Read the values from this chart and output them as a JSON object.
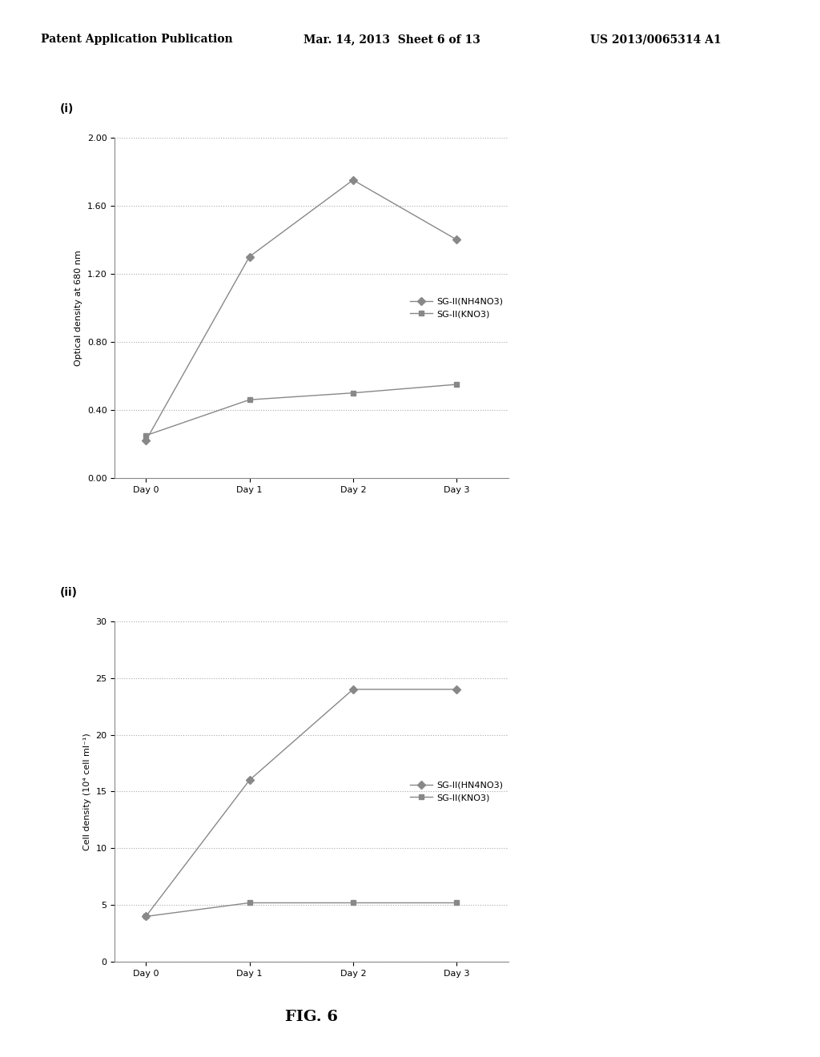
{
  "header_left": "Patent Application Publication",
  "header_mid": "Mar. 14, 2013  Sheet 6 of 13",
  "header_right": "US 2013/0065314 A1",
  "footer_label": "FIG. 6",
  "plot_i": {
    "label": "(i)",
    "x_labels": [
      "Day 0",
      "Day 1",
      "Day 2",
      "Day 3"
    ],
    "x_values": [
      0,
      1,
      2,
      3
    ],
    "series1_label": "SG-II(NH4NO3)",
    "series1_values": [
      0.22,
      1.3,
      1.75,
      1.4
    ],
    "series2_label": "SG-II(KNO3)",
    "series2_values": [
      0.25,
      0.46,
      0.5,
      0.55
    ],
    "ylabel": "Optical density at 680 nm",
    "ylim": [
      0.0,
      2.0
    ],
    "yticks": [
      0.0,
      0.4,
      0.8,
      1.2,
      1.6,
      2.0
    ],
    "marker1": "D",
    "marker2": "s"
  },
  "plot_ii": {
    "label": "(ii)",
    "x_labels": [
      "Day 0",
      "Day 1",
      "Day 2",
      "Day 3"
    ],
    "x_values": [
      0,
      1,
      2,
      3
    ],
    "series1_label": "SG-II(HN4NO3)",
    "series1_values": [
      4.0,
      16.0,
      24.0,
      24.0
    ],
    "series2_label": "SG-II(KNO3)",
    "series2_values": [
      4.0,
      5.2,
      5.2,
      5.2
    ],
    "ylabel": "Cell density (10⁴ cell ml⁻¹)",
    "ylim": [
      0,
      30
    ],
    "yticks": [
      0,
      5,
      10,
      15,
      20,
      25,
      30
    ],
    "marker1": "D",
    "marker2": "s"
  },
  "background_color": "#ffffff",
  "line_color": "#888888",
  "text_color": "#000000",
  "fontsize_header": 10,
  "fontsize_label": 8,
  "fontsize_tick": 8,
  "fontsize_legend": 8,
  "fontsize_footer": 14,
  "fontsize_panel_label": 10
}
